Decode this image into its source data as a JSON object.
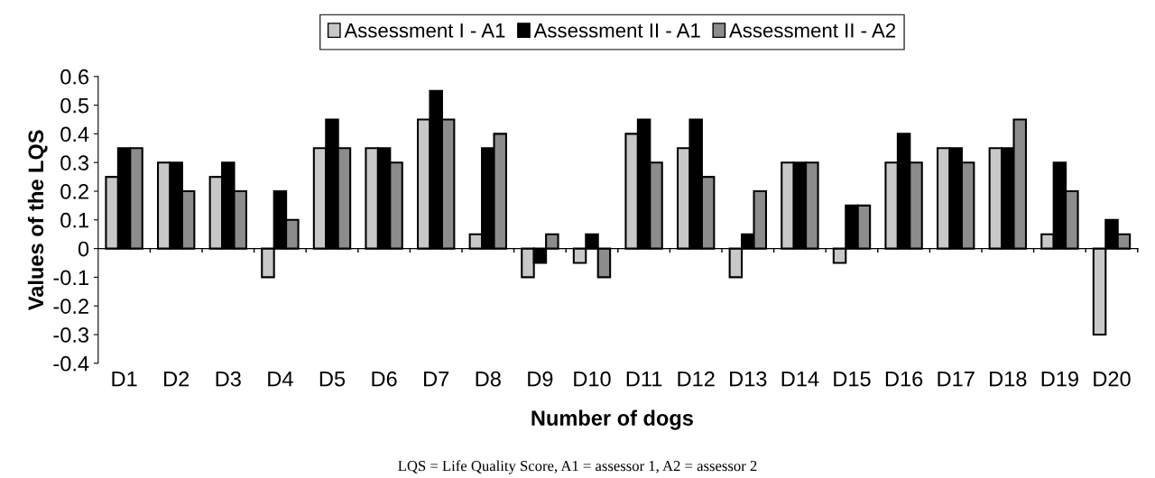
{
  "chart_data": {
    "type": "bar",
    "xlabel": "Number of dogs",
    "ylabel": "Values of the LQS",
    "categories": [
      "D1",
      "D2",
      "D3",
      "D4",
      "D5",
      "D6",
      "D7",
      "D8",
      "D9",
      "D10",
      "D11",
      "D12",
      "D13",
      "D14",
      "D15",
      "D16",
      "D17",
      "D18",
      "D19",
      "D20"
    ],
    "series": [
      {
        "name": "Assessment I - A1",
        "color": "#c8c8c8",
        "values": [
          0.25,
          0.3,
          0.25,
          -0.1,
          0.35,
          0.35,
          0.45,
          0.05,
          -0.1,
          -0.05,
          0.4,
          0.35,
          -0.1,
          0.3,
          -0.05,
          0.3,
          0.35,
          0.35,
          0.05,
          -0.3
        ]
      },
      {
        "name": "Assessment II - A1",
        "color": "#000000",
        "values": [
          0.35,
          0.3,
          0.3,
          0.2,
          0.45,
          0.35,
          0.55,
          0.35,
          -0.05,
          0.05,
          0.45,
          0.45,
          0.05,
          0.3,
          0.15,
          0.4,
          0.35,
          0.35,
          0.3,
          0.1
        ]
      },
      {
        "name": "Assessment II - A2",
        "color": "#8c8c8c",
        "values": [
          0.35,
          0.2,
          0.2,
          0.1,
          0.35,
          0.3,
          0.45,
          0.4,
          0.05,
          -0.1,
          0.3,
          0.25,
          0.2,
          0.3,
          0.15,
          0.3,
          0.3,
          0.45,
          0.2,
          0.05
        ]
      }
    ],
    "ylim": [
      -0.4,
      0.6
    ],
    "yticks": [
      -0.4,
      -0.3,
      -0.2,
      -0.1,
      0,
      0.1,
      0.2,
      0.3,
      0.4,
      0.5,
      0.6
    ],
    "legend": "top",
    "annotations": [
      "LQS = Life Quality Score, A1 = assessor 1, A2 = assessor 2"
    ]
  }
}
